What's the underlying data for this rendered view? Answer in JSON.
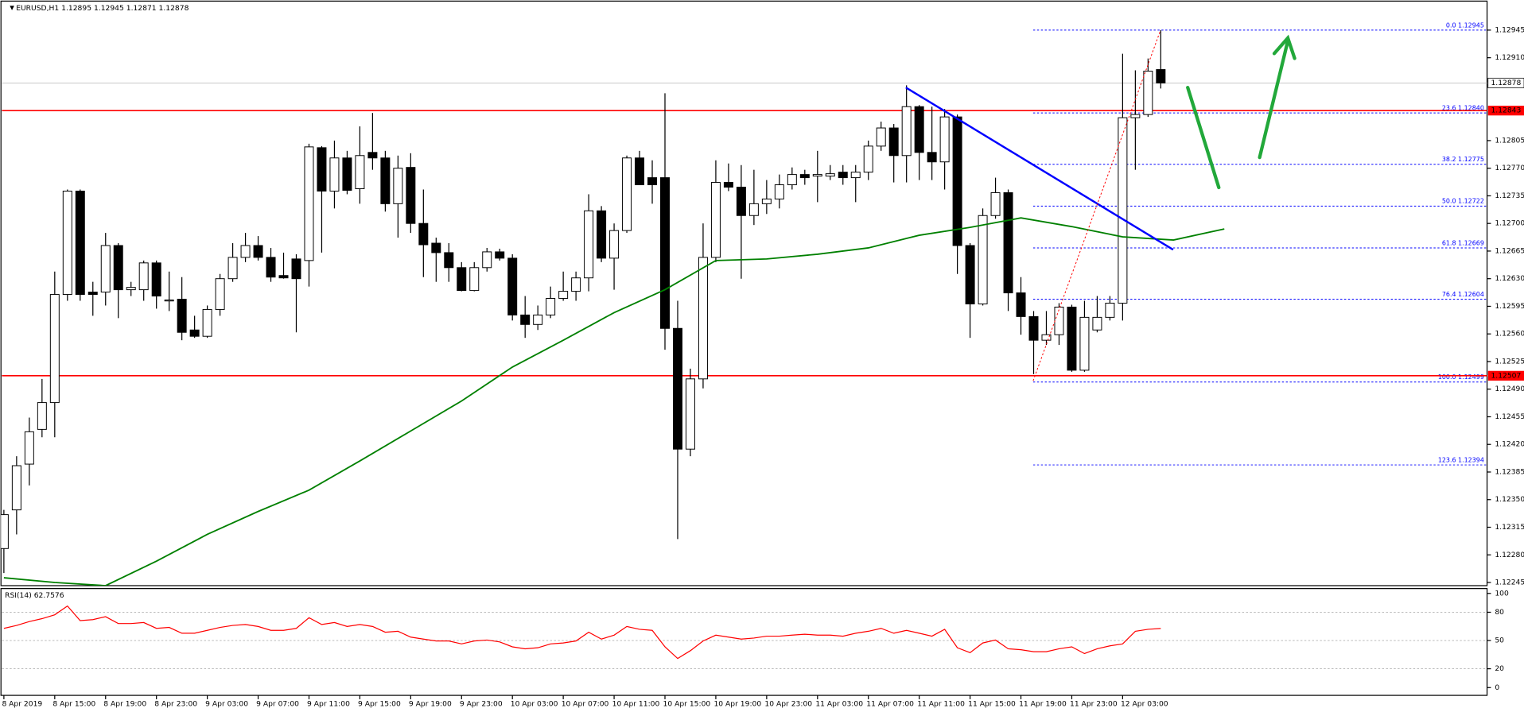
{
  "chart_data": {
    "type": "candlestick",
    "symbol": "EURUSD,H1",
    "categories": [
      "8 Apr 2019",
      null,
      null,
      null,
      "8 Apr 15:00",
      null,
      null,
      null,
      "8 Apr 19:00",
      null,
      null,
      null,
      "8 Apr 23:00",
      null,
      null,
      null,
      "9 Apr 03:00",
      null,
      null,
      null,
      "9 Apr 07:00",
      null,
      null,
      null,
      "9 Apr 11:00",
      null,
      null,
      null,
      "9 Apr 15:00",
      null,
      null,
      null,
      "9 Apr 19:00",
      null,
      null,
      null,
      "9 Apr 23:00",
      null,
      null,
      null,
      "10 Apr 03:00",
      null,
      null,
      null,
      "10 Apr 07:00",
      null,
      null,
      null,
      "10 Apr 11:00",
      null,
      null,
      null,
      "10 Apr 15:00",
      null,
      null,
      null,
      "10 Apr 19:00",
      null,
      null,
      null,
      "10 Apr 23:00",
      null,
      null,
      null,
      "11 Apr 03:00",
      null,
      null,
      null,
      "11 Apr 07:00",
      null,
      null,
      null,
      "11 Apr 11:00",
      null,
      null,
      null,
      "11 Apr 15:00",
      null,
      null,
      null,
      "11 Apr 19:00",
      null,
      null,
      null,
      "11 Apr 23:00",
      null,
      null,
      null,
      "12 Apr 03:00",
      null,
      null,
      null
    ],
    "open": [
      1.12288,
      1.12337,
      1.12395,
      1.12439,
      1.12473,
      1.1261,
      1.12741,
      1.12613,
      1.12613,
      1.12672,
      1.12616,
      1.12616,
      1.1265,
      1.12602,
      1.12604,
      1.12565,
      1.12557,
      1.12591,
      1.1263,
      1.12657,
      1.12672,
      1.12657,
      1.12634,
      1.12655,
      1.12653,
      1.12796,
      1.12741,
      1.12783,
      1.12744,
      1.1279,
      1.12783,
      1.12725,
      1.12771,
      1.127,
      1.12675,
      1.12663,
      1.12644,
      1.12615,
      1.12644,
      1.12664,
      1.12656,
      1.12584,
      1.12572,
      1.12584,
      1.12605,
      1.12614,
      1.12631,
      1.12716,
      1.12656,
      1.12691,
      1.12783,
      1.12758,
      1.12758,
      1.12567,
      1.12414,
      1.12503,
      1.12657,
      1.12752,
      1.12746,
      1.1271,
      1.12725,
      1.12731,
      1.12749,
      1.12762,
      1.1276,
      1.1276,
      1.12765,
      1.12758,
      1.12765,
      1.12798,
      1.12821,
      1.12786,
      1.12848,
      1.1279,
      1.12778,
      1.12835,
      1.12672,
      1.12598,
      1.1271,
      1.12739,
      1.12612,
      1.12582,
      1.12552,
      1.12559,
      1.12594,
      1.12514,
      1.12565,
      1.12581,
      1.12599,
      1.12834,
      1.12838,
      1.12895
    ],
    "high": [
      1.12337,
      1.12405,
      1.12454,
      1.12503,
      1.12639,
      1.12743,
      1.12743,
      1.12626,
      1.12688,
      1.12675,
      1.12626,
      1.12653,
      1.12653,
      1.12639,
      1.12632,
      1.12583,
      1.12596,
      1.12636,
      1.12675,
      1.12688,
      1.12684,
      1.12669,
      1.12663,
      1.12661,
      1.12801,
      1.12798,
      1.12805,
      1.12792,
      1.12823,
      1.1284,
      1.12792,
      1.12786,
      1.12789,
      1.12743,
      1.12682,
      1.12675,
      1.12651,
      1.12651,
      1.12669,
      1.12668,
      1.12661,
      1.12608,
      1.12596,
      1.1262,
      1.12639,
      1.12639,
      1.12737,
      1.12722,
      1.127,
      1.12786,
      1.12792,
      1.1278,
      1.12865,
      1.12602,
      1.12516,
      1.127,
      1.1278,
      1.12776,
      1.12774,
      1.12768,
      1.12755,
      1.12762,
      1.12771,
      1.12768,
      1.12792,
      1.12774,
      1.12774,
      1.12774,
      1.12805,
      1.12829,
      1.12826,
      1.12875,
      1.1285,
      1.12848,
      1.12845,
      1.12838,
      1.12675,
      1.12719,
      1.12758,
      1.12743,
      1.12632,
      1.12589,
      1.12589,
      1.12599,
      1.12597,
      1.12602,
      1.12608,
      1.12608,
      1.12915,
      1.12894,
      1.12909,
      1.12945
    ],
    "low": [
      1.12257,
      1.12306,
      1.12368,
      1.12429,
      1.12429,
      1.12602,
      1.12602,
      1.12583,
      1.12596,
      1.1258,
      1.12608,
      1.12602,
      1.12592,
      1.12589,
      1.12552,
      1.12555,
      1.12555,
      1.12583,
      1.12626,
      1.12651,
      1.12653,
      1.12626,
      1.1263,
      1.12562,
      1.1262,
      1.12663,
      1.12719,
      1.12737,
      1.12725,
      1.12768,
      1.12715,
      1.12682,
      1.12688,
      1.12632,
      1.12626,
      1.12626,
      1.12614,
      1.12614,
      1.12639,
      1.12653,
      1.12577,
      1.12555,
      1.12565,
      1.1258,
      1.12602,
      1.12602,
      1.12614,
      1.12651,
      1.12616,
      1.12688,
      1.12749,
      1.12725,
      1.1254,
      1.123,
      1.12405,
      1.12491,
      1.12651,
      1.12741,
      1.1263,
      1.12698,
      1.12712,
      1.12719,
      1.12743,
      1.12749,
      1.12727,
      1.12755,
      1.12749,
      1.12727,
      1.12755,
      1.12792,
      1.12752,
      1.12752,
      1.12755,
      1.12755,
      1.12743,
      1.12636,
      1.12555,
      1.12596,
      1.12706,
      1.12589,
      1.12559,
      1.12509,
      1.12546,
      1.12546,
      1.12512,
      1.12512,
      1.12562,
      1.12577,
      1.12577,
      1.12768,
      1.12835,
      1.12871
    ],
    "close": [
      1.12331,
      1.12393,
      1.12436,
      1.12473,
      1.1261,
      1.12741,
      1.1261,
      1.1261,
      1.12672,
      1.12616,
      1.12619,
      1.1265,
      1.12608,
      1.12603,
      1.12562,
      1.12557,
      1.12591,
      1.1263,
      1.12657,
      1.12672,
      1.12657,
      1.12632,
      1.12631,
      1.1263,
      1.12797,
      1.12741,
      1.12783,
      1.12742,
      1.12786,
      1.12783,
      1.12725,
      1.1277,
      1.127,
      1.12673,
      1.12663,
      1.12644,
      1.12615,
      1.12644,
      1.12664,
      1.12656,
      1.12584,
      1.12572,
      1.12584,
      1.12605,
      1.12614,
      1.12631,
      1.12716,
      1.12656,
      1.12691,
      1.12783,
      1.12749,
      1.12749,
      1.12567,
      1.12414,
      1.12503,
      1.12657,
      1.12752,
      1.12746,
      1.1271,
      1.12725,
      1.12731,
      1.12749,
      1.12762,
      1.12758,
      1.12762,
      1.12763,
      1.12758,
      1.12765,
      1.12798,
      1.12821,
      1.12786,
      1.12848,
      1.1279,
      1.12778,
      1.12835,
      1.12672,
      1.12598,
      1.1271,
      1.12739,
      1.12612,
      1.12582,
      1.12552,
      1.12559,
      1.12594,
      1.12514,
      1.12581,
      1.12581,
      1.12599,
      1.12834,
      1.12838,
      1.12893,
      1.12878
    ],
    "up_color": "#ffffff",
    "down_color": "#000000",
    "ylim": [
      1.12241,
      1.12983
    ],
    "yticks": [
      1.12945,
      {
        "value": 1.1291,
        "label": "1.12910"
      },
      1.12805,
      {
        "value": 1.1277,
        "label": "1.12770"
      },
      1.12735,
      {
        "value": 1.127,
        "label": "1.12700"
      },
      1.12665,
      {
        "value": 1.1263,
        "label": "1.12630"
      },
      1.12595,
      {
        "value": 1.1256,
        "label": "1.12560"
      },
      1.12525,
      {
        "value": 1.1249,
        "label": "1.12490"
      },
      1.12455,
      {
        "value": 1.1242,
        "label": "1.12420"
      },
      1.12385,
      {
        "value": 1.1235,
        "label": "1.12350"
      },
      1.12315,
      {
        "value": 1.1228,
        "label": "1.12280"
      },
      1.12245
    ],
    "ma": {
      "color": "#008000",
      "x": [
        0,
        4,
        8,
        12,
        16,
        20,
        24,
        28,
        32,
        36,
        40,
        44,
        48,
        52,
        56,
        60,
        64,
        68,
        72,
        76,
        80,
        84,
        88,
        92,
        96
      ],
      "values": [
        1.12251,
        1.12245,
        1.12241,
        1.12272,
        1.12306,
        1.12335,
        1.12362,
        1.12399,
        1.12437,
        1.12475,
        1.12518,
        1.12552,
        1.12587,
        1.12616,
        1.12653,
        1.12655,
        1.12661,
        1.12669,
        1.12685,
        1.12695,
        1.12707,
        1.12696,
        1.12683,
        1.12679,
        1.12693
      ]
    },
    "levels": [
      {
        "value": 1.12843,
        "color": "#ff0000"
      },
      {
        "value": 1.12507,
        "color": "#ff0000"
      }
    ],
    "fib": [
      {
        "label": "0.0 1.12945",
        "value": 1.12945
      },
      {
        "label": "23.6 1.12840",
        "value": 1.1284
      },
      {
        "label": "38.2 1.12775",
        "value": 1.12775
      },
      {
        "label": "50.0 1.12722",
        "value": 1.12722
      },
      {
        "label": "61.8 1.12669",
        "value": 1.12669
      },
      {
        "label": "76.4 1.12604",
        "value": 1.12604
      },
      {
        "label": "100.0 1.12499",
        "value": 1.12499
      },
      {
        "label": "123.6 1.12394",
        "value": 1.12394
      }
    ],
    "fib_color": "#0000ff",
    "rsi": {
      "name": "RSI(14)",
      "color": "#ff0000",
      "ylim": [
        0,
        100
      ],
      "yticks": [
        100,
        80,
        50,
        20,
        0
      ],
      "levels": [
        80,
        50,
        20
      ],
      "values": [
        62.9,
        66.0,
        70.1,
        73.2,
        77.3,
        86.6,
        71.1,
        72.2,
        75.3,
        68.0,
        68.0,
        69.1,
        62.9,
        63.9,
        57.7,
        57.7,
        60.8,
        63.9,
        66.0,
        67.0,
        64.9,
        60.8,
        60.8,
        62.9,
        74.2,
        67.0,
        69.1,
        64.9,
        67.0,
        64.9,
        58.8,
        59.8,
        53.6,
        51.5,
        49.5,
        49.5,
        46.4,
        49.5,
        50.5,
        48.5,
        43.3,
        41.2,
        42.3,
        46.4,
        47.4,
        49.5,
        58.8,
        51.5,
        55.7,
        64.9,
        61.9,
        60.8,
        43.3,
        30.9,
        39.2,
        49.5,
        55.7,
        53.6,
        51.5,
        52.6,
        54.6,
        54.6,
        55.7,
        56.7,
        55.7,
        55.7,
        54.6,
        57.7,
        59.8,
        62.9,
        57.7,
        60.8,
        57.7,
        54.6,
        61.9,
        42.3,
        37.1,
        47.4,
        50.5,
        41.2,
        40.2,
        38.1,
        38.1,
        41.2,
        43.3,
        36.1,
        41.2,
        44.3,
        46.4,
        59.8,
        61.9,
        62.7576
      ]
    }
  }
}
